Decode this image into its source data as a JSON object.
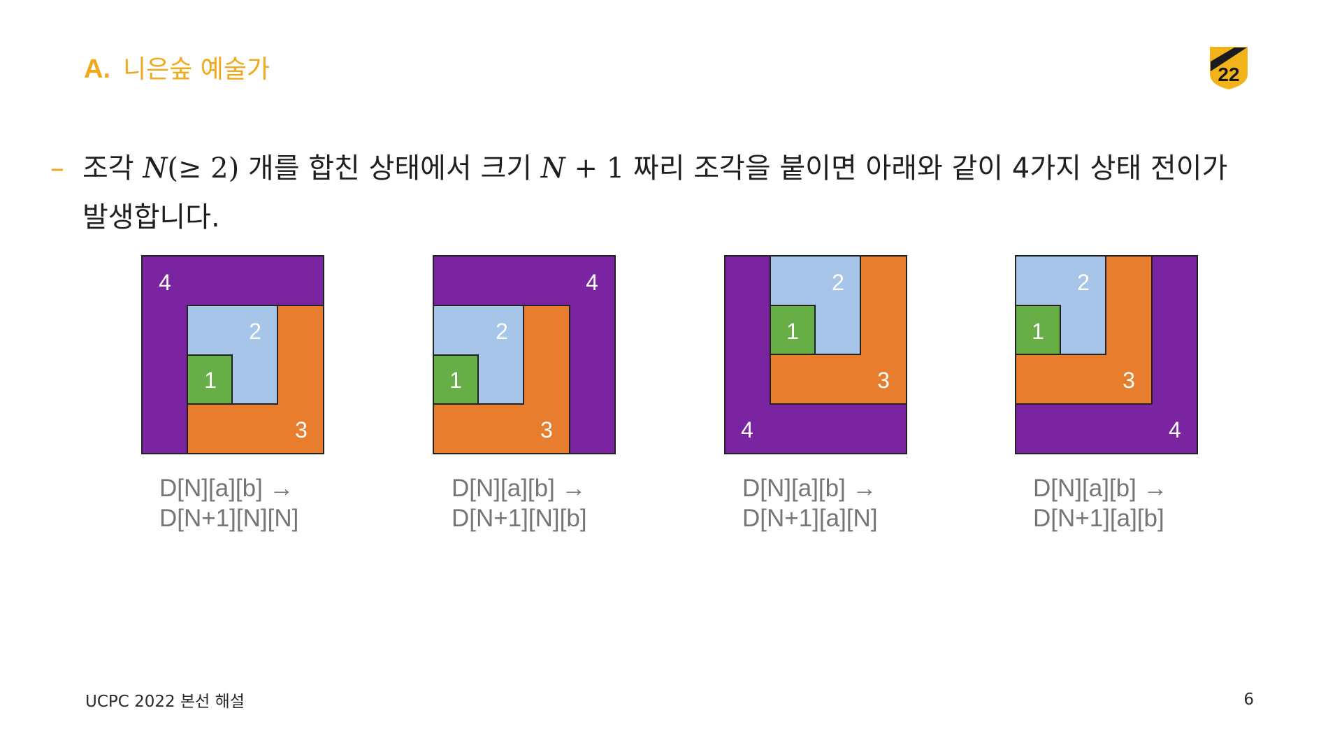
{
  "header": {
    "section": "A.",
    "title": "니은숲 예술가",
    "logo_text": "22"
  },
  "bullet": {
    "marker": "–",
    "segments": [
      {
        "t": "조각 "
      },
      {
        "t": "N",
        "m": "i"
      },
      {
        "t": "(≥ 2)",
        "m": "u"
      },
      {
        "t": " 개를 합친 상태에서 크기 "
      },
      {
        "t": "N",
        "m": "i"
      },
      {
        "t": " + 1",
        "m": "u"
      },
      {
        "t": " 짜리 조각을 붙이면 아래와 같이 4가지 상태 전이가 발생합니다."
      }
    ]
  },
  "diagrams": [
    {
      "labels": {
        "p1": "1",
        "p2": "2",
        "p3": "3",
        "p4": "4"
      },
      "caption_line1": "D[N][a][b] →",
      "caption_line2": "D[N+1][N][N]"
    },
    {
      "labels": {
        "p1": "1",
        "p2": "2",
        "p3": "3",
        "p4": "4"
      },
      "caption_line1": "D[N][a][b] →",
      "caption_line2": "D[N+1][N][b]"
    },
    {
      "labels": {
        "p1": "1",
        "p2": "2",
        "p3": "3",
        "p4": "4"
      },
      "caption_line1": "D[N][a][b] →",
      "caption_line2": "D[N+1][a][N]"
    },
    {
      "labels": {
        "p1": "1",
        "p2": "2",
        "p3": "3",
        "p4": "4"
      },
      "caption_line1": "D[N][a][b] →",
      "caption_line2": "D[N+1][a][b]"
    }
  ],
  "colors": {
    "accent": "#F2A81D",
    "piece1": "#66AE45",
    "piece2": "#A6C5E9",
    "piece3": "#E87D2E",
    "piece4": "#7B24A1",
    "caption": "#757575"
  },
  "footer": {
    "left": "UCPC 2022 본선 해설",
    "page_number": "6"
  }
}
